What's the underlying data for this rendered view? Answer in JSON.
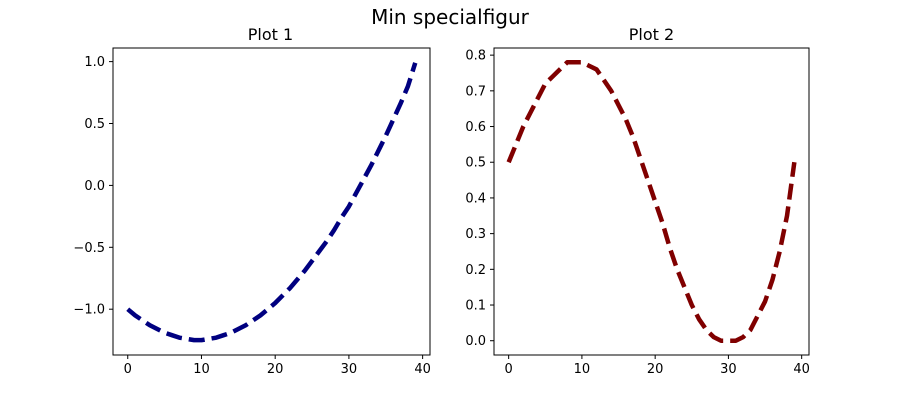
{
  "figure": {
    "suptitle": "Min specialfigur"
  },
  "chart_data": [
    {
      "type": "line",
      "title": "Plot 1",
      "xlabel": "",
      "ylabel": "",
      "xlim": [
        -2,
        41
      ],
      "ylim": [
        -1.37,
        1.11
      ],
      "xticks": [
        0,
        10,
        20,
        30,
        40
      ],
      "xtick_labels": [
        "0",
        "10",
        "20",
        "30",
        "40"
      ],
      "yticks": [
        -1.0,
        -0.5,
        0.0,
        0.5,
        1.0
      ],
      "ytick_labels": [
        "−1.0",
        "−0.5",
        "0.0",
        "0.5",
        "1.0"
      ],
      "grid": false,
      "series": [
        {
          "color": "#000080",
          "line_style": "dashed",
          "x": [
            0,
            1,
            2,
            3,
            4,
            5,
            6,
            7,
            8,
            9,
            10,
            11,
            12,
            13,
            14,
            15,
            16,
            17,
            18,
            19,
            20,
            21,
            22,
            23,
            24,
            25,
            26,
            27,
            28,
            29,
            30,
            31,
            32,
            33,
            34,
            35,
            36,
            37,
            38,
            39
          ],
          "y": [
            -1.0,
            -1.05,
            -1.09,
            -1.13,
            -1.16,
            -1.19,
            -1.21,
            -1.23,
            -1.24,
            -1.25,
            -1.25,
            -1.24,
            -1.23,
            -1.21,
            -1.19,
            -1.16,
            -1.13,
            -1.09,
            -1.05,
            -1.0,
            -0.95,
            -0.89,
            -0.83,
            -0.76,
            -0.69,
            -0.61,
            -0.53,
            -0.45,
            -0.36,
            -0.26,
            -0.17,
            -0.06,
            0.05,
            0.16,
            0.28,
            0.4,
            0.53,
            0.66,
            0.8,
            0.99
          ]
        }
      ]
    },
    {
      "type": "line",
      "title": "Plot 2",
      "xlabel": "",
      "ylabel": "",
      "xlim": [
        -2,
        41
      ],
      "ylim": [
        -0.04,
        0.82
      ],
      "xticks": [
        0,
        10,
        20,
        30,
        40
      ],
      "xtick_labels": [
        "0",
        "10",
        "20",
        "30",
        "40"
      ],
      "yticks": [
        0.0,
        0.1,
        0.2,
        0.3,
        0.4,
        0.5,
        0.6,
        0.7,
        0.8
      ],
      "ytick_labels": [
        "0.0",
        "0.1",
        "0.2",
        "0.3",
        "0.4",
        "0.5",
        "0.6",
        "0.7",
        "0.8"
      ],
      "grid": false,
      "series": [
        {
          "color": "#800000",
          "line_style": "dashed",
          "x": [
            0,
            1,
            2,
            3,
            4,
            5,
            6,
            7,
            8,
            9,
            10,
            11,
            12,
            13,
            14,
            15,
            16,
            17,
            18,
            19,
            20,
            21,
            22,
            23,
            24,
            25,
            26,
            27,
            28,
            29,
            30,
            31,
            32,
            33,
            34,
            35,
            36,
            37,
            38,
            39
          ],
          "y": [
            0.5,
            0.55,
            0.6,
            0.64,
            0.68,
            0.72,
            0.74,
            0.76,
            0.78,
            0.78,
            0.78,
            0.77,
            0.76,
            0.73,
            0.7,
            0.66,
            0.62,
            0.57,
            0.51,
            0.45,
            0.39,
            0.33,
            0.26,
            0.2,
            0.15,
            0.1,
            0.06,
            0.03,
            0.01,
            0.0,
            0.0,
            0.0,
            0.01,
            0.03,
            0.07,
            0.11,
            0.17,
            0.25,
            0.35,
            0.5
          ]
        }
      ]
    }
  ]
}
